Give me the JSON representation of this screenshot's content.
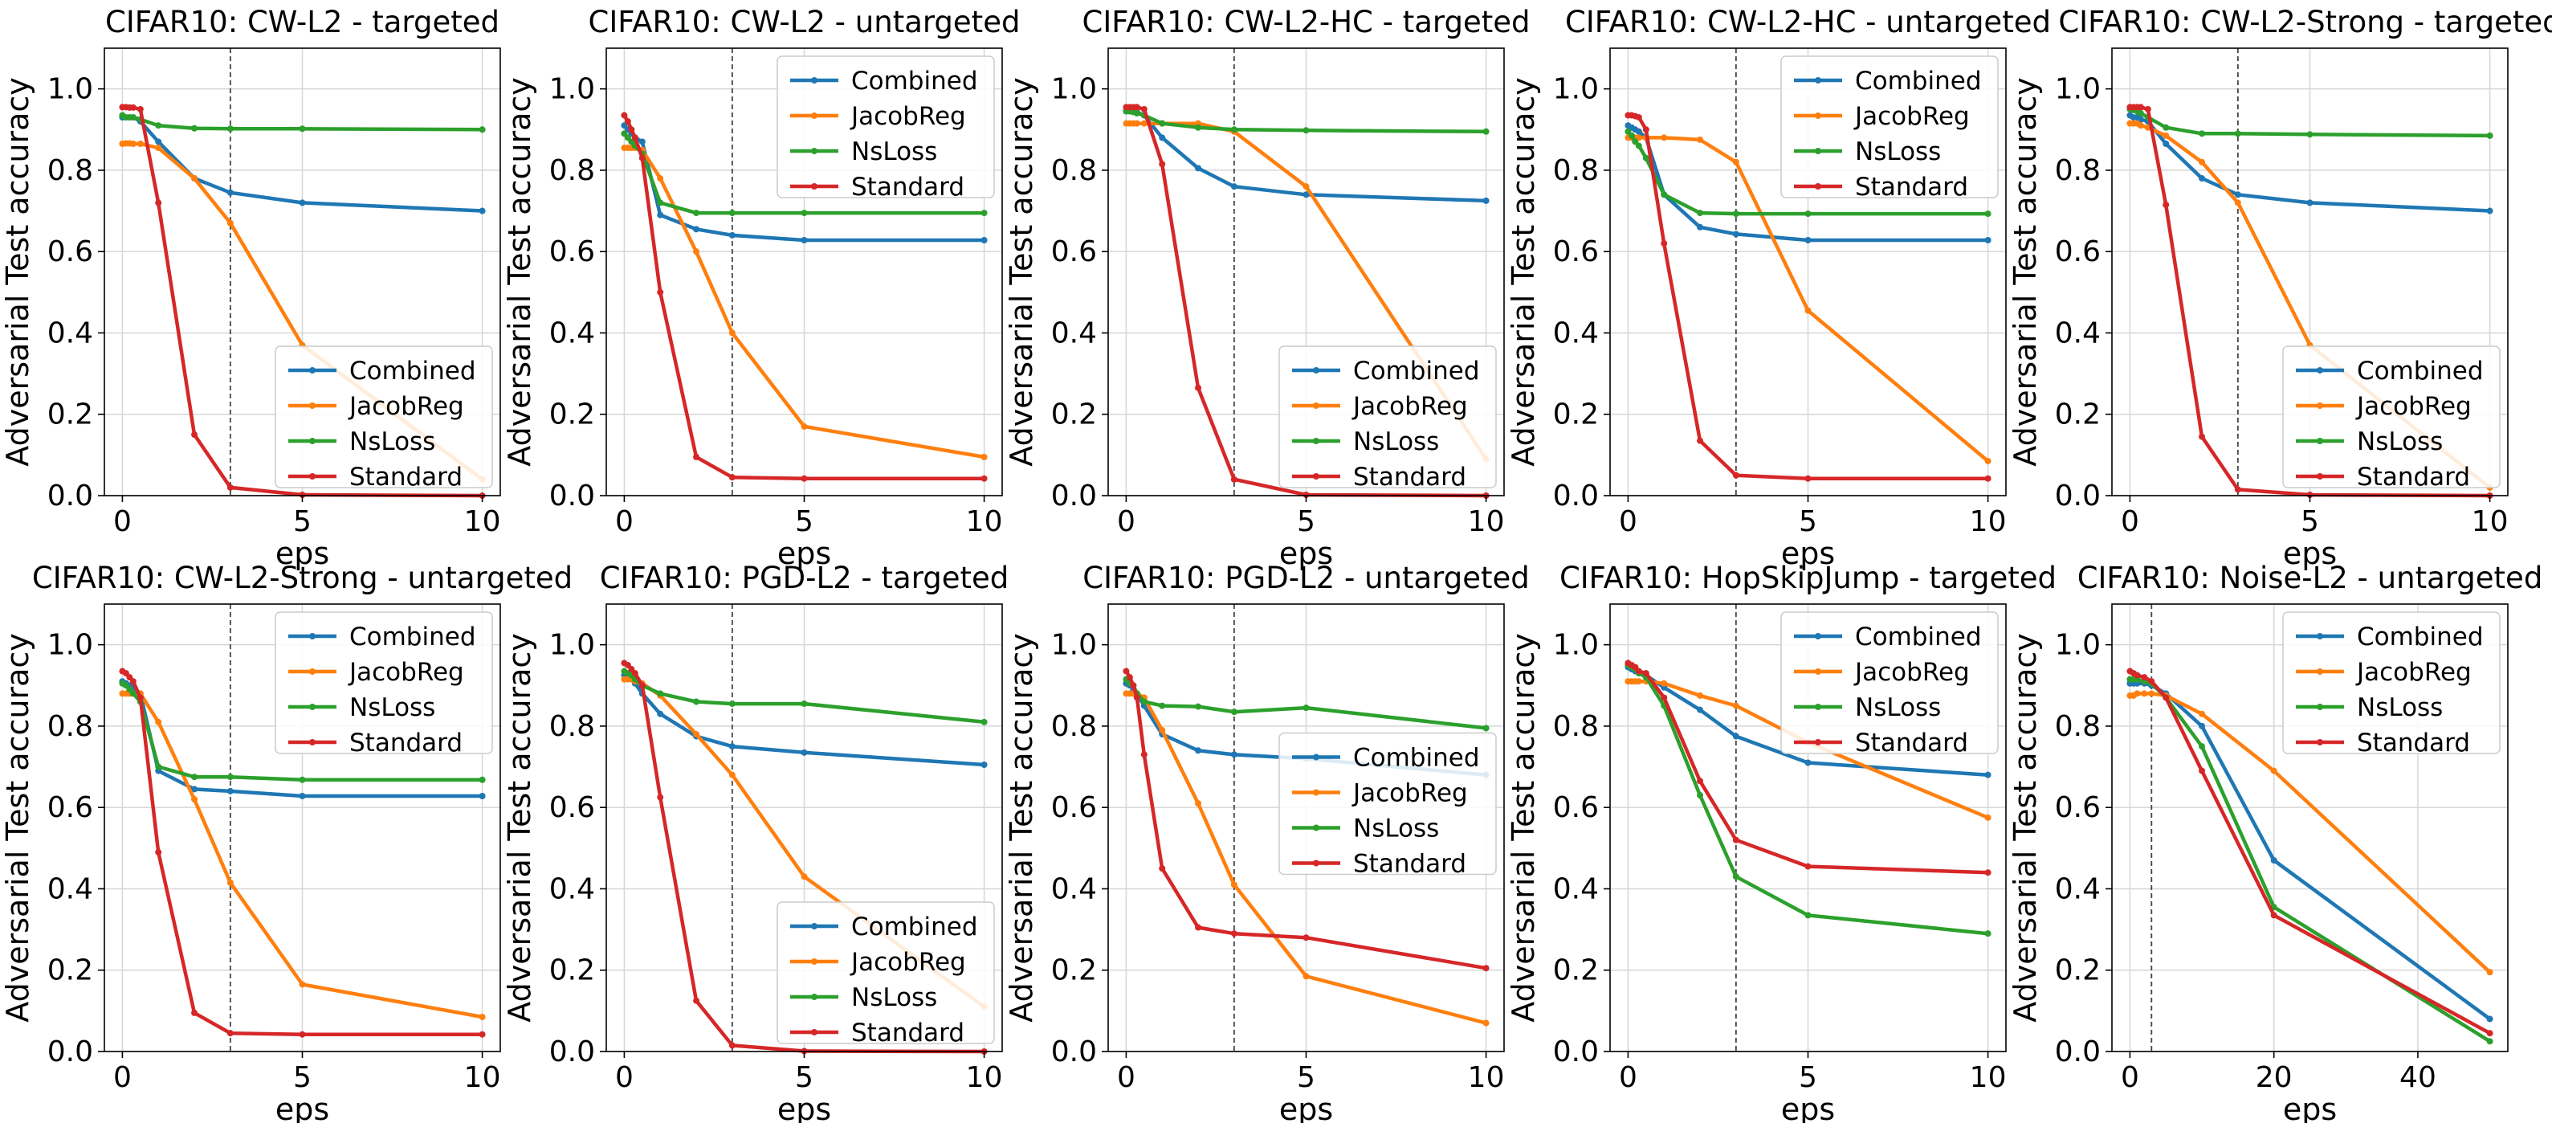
{
  "figure": {
    "colors": {
      "Combined": "#1f77b4",
      "JacobReg": "#ff7f0e",
      "NsLoss": "#2ca02c",
      "Standard": "#d62728"
    }
  },
  "chart_data": [
    {
      "type": "line",
      "title": "CIFAR10: CW-L2 - targeted",
      "xlabel": "eps",
      "ylabel": "Adversarial Test accuracy",
      "xlim": [
        -0.5,
        10.5
      ],
      "ylim": [
        0,
        1.1
      ],
      "xticks": [
        0,
        5,
        10
      ],
      "yticks": [
        0.0,
        0.2,
        0.4,
        0.6,
        0.8,
        1.0
      ],
      "vline": 3,
      "legend": "lower-right",
      "x": [
        0,
        0.1,
        0.2,
        0.3,
        0.5,
        1,
        2,
        3,
        5,
        10
      ],
      "series": [
        {
          "name": "Combined",
          "values": [
            0.93,
            0.93,
            0.93,
            0.93,
            0.92,
            0.87,
            0.78,
            0.745,
            0.72,
            0.7
          ]
        },
        {
          "name": "JacobReg",
          "values": [
            0.865,
            0.866,
            0.866,
            0.865,
            0.865,
            0.855,
            0.78,
            0.67,
            0.37,
            0.04
          ]
        },
        {
          "name": "NsLoss",
          "values": [
            0.935,
            0.93,
            0.93,
            0.93,
            0.925,
            0.91,
            0.903,
            0.902,
            0.902,
            0.9
          ]
        },
        {
          "name": "Standard",
          "values": [
            0.955,
            0.955,
            0.954,
            0.954,
            0.95,
            0.72,
            0.15,
            0.02,
            0.002,
            0.0
          ]
        }
      ]
    },
    {
      "type": "line",
      "title": "CIFAR10: CW-L2 - untargeted",
      "xlabel": "eps",
      "ylabel": "Adversarial Test accuracy",
      "xlim": [
        -0.5,
        10.5
      ],
      "ylim": [
        0,
        1.1
      ],
      "xticks": [
        0,
        5,
        10
      ],
      "yticks": [
        0.0,
        0.2,
        0.4,
        0.6,
        0.8,
        1.0
      ],
      "vline": 3,
      "legend": "upper-right",
      "x": [
        0,
        0.1,
        0.2,
        0.3,
        0.5,
        1,
        2,
        3,
        5,
        10
      ],
      "series": [
        {
          "name": "Combined",
          "values": [
            0.91,
            0.9,
            0.89,
            0.88,
            0.87,
            0.69,
            0.655,
            0.64,
            0.628,
            0.628
          ]
        },
        {
          "name": "JacobReg",
          "values": [
            0.855,
            0.855,
            0.855,
            0.855,
            0.85,
            0.78,
            0.6,
            0.4,
            0.17,
            0.095
          ]
        },
        {
          "name": "NsLoss",
          "values": [
            0.89,
            0.88,
            0.87,
            0.86,
            0.84,
            0.72,
            0.695,
            0.695,
            0.695,
            0.695
          ]
        },
        {
          "name": "Standard",
          "values": [
            0.935,
            0.92,
            0.9,
            0.88,
            0.83,
            0.5,
            0.095,
            0.045,
            0.042,
            0.042
          ]
        }
      ]
    },
    {
      "type": "line",
      "title": "CIFAR10: CW-L2-HC - targeted",
      "xlabel": "eps",
      "ylabel": "Adversarial Test accuracy",
      "xlim": [
        -0.5,
        10.5
      ],
      "ylim": [
        0,
        1.1
      ],
      "xticks": [
        0,
        5,
        10
      ],
      "yticks": [
        0.0,
        0.2,
        0.4,
        0.6,
        0.8,
        1.0
      ],
      "vline": 3,
      "legend": "lower-right",
      "x": [
        0,
        0.1,
        0.2,
        0.3,
        0.5,
        1,
        2,
        3,
        5,
        10
      ],
      "series": [
        {
          "name": "Combined",
          "values": [
            0.945,
            0.945,
            0.944,
            0.943,
            0.935,
            0.88,
            0.805,
            0.76,
            0.74,
            0.725
          ]
        },
        {
          "name": "JacobReg",
          "values": [
            0.915,
            0.915,
            0.915,
            0.915,
            0.915,
            0.915,
            0.915,
            0.895,
            0.76,
            0.09
          ]
        },
        {
          "name": "NsLoss",
          "values": [
            0.945,
            0.945,
            0.943,
            0.94,
            0.935,
            0.915,
            0.905,
            0.9,
            0.898,
            0.895
          ]
        },
        {
          "name": "Standard",
          "values": [
            0.955,
            0.955,
            0.955,
            0.955,
            0.95,
            0.815,
            0.265,
            0.04,
            0.002,
            0.0
          ]
        }
      ]
    },
    {
      "type": "line",
      "title": "CIFAR10: CW-L2-HC - untargeted",
      "xlabel": "eps",
      "ylabel": "Adversarial Test accuracy",
      "xlim": [
        -0.5,
        10.5
      ],
      "ylim": [
        0,
        1.1
      ],
      "xticks": [
        0,
        5,
        10
      ],
      "yticks": [
        0.0,
        0.2,
        0.4,
        0.6,
        0.8,
        1.0
      ],
      "vline": 3,
      "legend": "upper-right",
      "x": [
        0,
        0.1,
        0.2,
        0.3,
        0.5,
        1,
        2,
        3,
        5,
        10
      ],
      "series": [
        {
          "name": "Combined",
          "values": [
            0.91,
            0.905,
            0.9,
            0.895,
            0.88,
            0.74,
            0.66,
            0.643,
            0.628,
            0.628
          ]
        },
        {
          "name": "JacobReg",
          "values": [
            0.88,
            0.88,
            0.88,
            0.88,
            0.88,
            0.88,
            0.875,
            0.82,
            0.455,
            0.085
          ]
        },
        {
          "name": "NsLoss",
          "values": [
            0.895,
            0.885,
            0.87,
            0.86,
            0.83,
            0.74,
            0.695,
            0.693,
            0.693,
            0.693
          ]
        },
        {
          "name": "Standard",
          "values": [
            0.935,
            0.935,
            0.933,
            0.93,
            0.9,
            0.62,
            0.135,
            0.05,
            0.042,
            0.042
          ]
        }
      ]
    },
    {
      "type": "line",
      "title": "CIFAR10: CW-L2-Strong - targeted",
      "xlabel": "eps",
      "ylabel": "Adversarial Test accuracy",
      "xlim": [
        -0.5,
        10.5
      ],
      "ylim": [
        0,
        1.1
      ],
      "xticks": [
        0,
        5,
        10
      ],
      "yticks": [
        0.0,
        0.2,
        0.4,
        0.6,
        0.8,
        1.0
      ],
      "vline": 3,
      "legend": "lower-right",
      "x": [
        0,
        0.1,
        0.2,
        0.3,
        0.5,
        1,
        2,
        3,
        5,
        10
      ],
      "series": [
        {
          "name": "Combined",
          "values": [
            0.935,
            0.93,
            0.93,
            0.925,
            0.92,
            0.865,
            0.78,
            0.74,
            0.72,
            0.7
          ]
        },
        {
          "name": "JacobReg",
          "values": [
            0.915,
            0.915,
            0.915,
            0.91,
            0.905,
            0.885,
            0.82,
            0.72,
            0.37,
            0.02
          ]
        },
        {
          "name": "NsLoss",
          "values": [
            0.95,
            0.948,
            0.945,
            0.94,
            0.93,
            0.905,
            0.89,
            0.89,
            0.888,
            0.885
          ]
        },
        {
          "name": "Standard",
          "values": [
            0.955,
            0.955,
            0.955,
            0.955,
            0.95,
            0.715,
            0.145,
            0.015,
            0.002,
            0.0
          ]
        }
      ]
    },
    {
      "type": "line",
      "title": "CIFAR10: CW-L2-Strong - untargeted",
      "xlabel": "eps",
      "ylabel": "Adversarial Test accuracy",
      "xlim": [
        -0.5,
        10.5
      ],
      "ylim": [
        0,
        1.1
      ],
      "xticks": [
        0,
        5,
        10
      ],
      "yticks": [
        0.0,
        0.2,
        0.4,
        0.6,
        0.8,
        1.0
      ],
      "vline": 3,
      "legend": "upper-right",
      "x": [
        0,
        0.1,
        0.2,
        0.3,
        0.5,
        1,
        2,
        3,
        5,
        10
      ],
      "series": [
        {
          "name": "Combined",
          "values": [
            0.91,
            0.905,
            0.9,
            0.895,
            0.88,
            0.69,
            0.645,
            0.64,
            0.628,
            0.628
          ]
        },
        {
          "name": "JacobReg",
          "values": [
            0.88,
            0.88,
            0.88,
            0.88,
            0.88,
            0.81,
            0.62,
            0.415,
            0.165,
            0.085
          ]
        },
        {
          "name": "NsLoss",
          "values": [
            0.905,
            0.9,
            0.89,
            0.88,
            0.86,
            0.7,
            0.675,
            0.675,
            0.668,
            0.668
          ]
        },
        {
          "name": "Standard",
          "values": [
            0.935,
            0.93,
            0.92,
            0.91,
            0.87,
            0.49,
            0.095,
            0.045,
            0.042,
            0.042
          ]
        }
      ]
    },
    {
      "type": "line",
      "title": "CIFAR10: PGD-L2 - targeted",
      "xlabel": "eps",
      "ylabel": "Adversarial Test accuracy",
      "xlim": [
        -0.5,
        10.5
      ],
      "ylim": [
        0,
        1.1
      ],
      "xticks": [
        0,
        5,
        10
      ],
      "yticks": [
        0.0,
        0.2,
        0.4,
        0.6,
        0.8,
        1.0
      ],
      "vline": 3,
      "legend": "lower-right",
      "x": [
        0,
        0.1,
        0.2,
        0.3,
        0.5,
        1,
        2,
        3,
        5,
        10
      ],
      "series": [
        {
          "name": "Combined",
          "values": [
            0.925,
            0.92,
            0.915,
            0.905,
            0.88,
            0.83,
            0.775,
            0.75,
            0.735,
            0.705
          ]
        },
        {
          "name": "JacobReg",
          "values": [
            0.915,
            0.915,
            0.915,
            0.91,
            0.905,
            0.875,
            0.78,
            0.68,
            0.43,
            0.11
          ]
        },
        {
          "name": "NsLoss",
          "values": [
            0.935,
            0.93,
            0.925,
            0.915,
            0.9,
            0.88,
            0.86,
            0.855,
            0.855,
            0.81
          ]
        },
        {
          "name": "Standard",
          "values": [
            0.955,
            0.95,
            0.94,
            0.93,
            0.9,
            0.625,
            0.125,
            0.015,
            0.001,
            0.0
          ]
        }
      ]
    },
    {
      "type": "line",
      "title": "CIFAR10: PGD-L2 - untargeted",
      "xlabel": "eps",
      "ylabel": "Adversarial Test accuracy",
      "xlim": [
        -0.5,
        10.5
      ],
      "ylim": [
        0,
        1.1
      ],
      "xticks": [
        0,
        5,
        10
      ],
      "yticks": [
        0.0,
        0.2,
        0.4,
        0.6,
        0.8,
        1.0
      ],
      "vline": 3,
      "legend": "center-right",
      "x": [
        0,
        0.1,
        0.2,
        0.3,
        0.5,
        1,
        2,
        3,
        5,
        10
      ],
      "series": [
        {
          "name": "Combined",
          "values": [
            0.905,
            0.9,
            0.89,
            0.88,
            0.85,
            0.78,
            0.74,
            0.73,
            0.72,
            0.68
          ]
        },
        {
          "name": "JacobReg",
          "values": [
            0.88,
            0.88,
            0.88,
            0.88,
            0.87,
            0.79,
            0.61,
            0.41,
            0.185,
            0.07
          ]
        },
        {
          "name": "NsLoss",
          "values": [
            0.915,
            0.905,
            0.9,
            0.88,
            0.86,
            0.85,
            0.848,
            0.835,
            0.845,
            0.795
          ]
        },
        {
          "name": "Standard",
          "values": [
            0.935,
            0.92,
            0.9,
            0.87,
            0.73,
            0.45,
            0.305,
            0.29,
            0.28,
            0.205
          ]
        }
      ]
    },
    {
      "type": "line",
      "title": "CIFAR10: HopSkipJump - targeted",
      "xlabel": "eps",
      "ylabel": "Adversarial Test accuracy",
      "xlim": [
        -0.5,
        10.5
      ],
      "ylim": [
        0,
        1.1
      ],
      "xticks": [
        0,
        5,
        10
      ],
      "yticks": [
        0.0,
        0.2,
        0.4,
        0.6,
        0.8,
        1.0
      ],
      "vline": 3,
      "legend": "upper-right",
      "x": [
        0,
        0.1,
        0.2,
        0.3,
        0.5,
        1,
        2,
        3,
        5,
        10
      ],
      "series": [
        {
          "name": "Combined",
          "values": [
            0.945,
            0.94,
            0.935,
            0.93,
            0.925,
            0.895,
            0.84,
            0.775,
            0.71,
            0.68
          ]
        },
        {
          "name": "JacobReg",
          "values": [
            0.91,
            0.91,
            0.91,
            0.91,
            0.91,
            0.905,
            0.875,
            0.85,
            0.76,
            0.575
          ]
        },
        {
          "name": "NsLoss",
          "values": [
            0.95,
            0.945,
            0.94,
            0.93,
            0.92,
            0.85,
            0.63,
            0.43,
            0.335,
            0.29
          ]
        },
        {
          "name": "Standard",
          "values": [
            0.955,
            0.95,
            0.945,
            0.935,
            0.93,
            0.87,
            0.665,
            0.52,
            0.455,
            0.44
          ]
        }
      ]
    },
    {
      "type": "line",
      "title": "CIFAR10: Noise-L2 - untargeted",
      "xlabel": "eps",
      "ylabel": "Adversarial Test accuracy",
      "xlim": [
        -2.5,
        52.5
      ],
      "ylim": [
        0,
        1.1
      ],
      "xticks": [
        0,
        20,
        40
      ],
      "yticks": [
        0.0,
        0.2,
        0.4,
        0.6,
        0.8,
        1.0
      ],
      "vline": 3,
      "legend": "upper-right",
      "x": [
        0,
        0.5,
        1,
        2,
        3,
        5,
        10,
        20,
        50
      ],
      "series": [
        {
          "name": "Combined",
          "values": [
            0.905,
            0.905,
            0.905,
            0.905,
            0.9,
            0.88,
            0.8,
            0.47,
            0.08
          ]
        },
        {
          "name": "JacobReg",
          "values": [
            0.875,
            0.875,
            0.88,
            0.88,
            0.88,
            0.875,
            0.83,
            0.69,
            0.195
          ]
        },
        {
          "name": "NsLoss",
          "values": [
            0.915,
            0.915,
            0.915,
            0.91,
            0.905,
            0.87,
            0.75,
            0.355,
            0.025
          ]
        },
        {
          "name": "Standard",
          "values": [
            0.935,
            0.93,
            0.925,
            0.92,
            0.91,
            0.87,
            0.69,
            0.335,
            0.045
          ]
        }
      ]
    }
  ]
}
